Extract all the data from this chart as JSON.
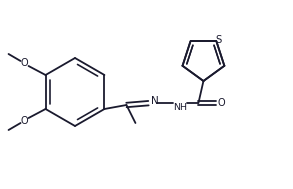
{
  "bg_color": "#ffffff",
  "line_color": "#1a1a2e",
  "lw": 1.3,
  "fs": 6.5,
  "figsize": [
    2.93,
    1.89
  ],
  "dpi": 100,
  "xlim": [
    0,
    293
  ],
  "ylim": [
    0,
    189
  ]
}
